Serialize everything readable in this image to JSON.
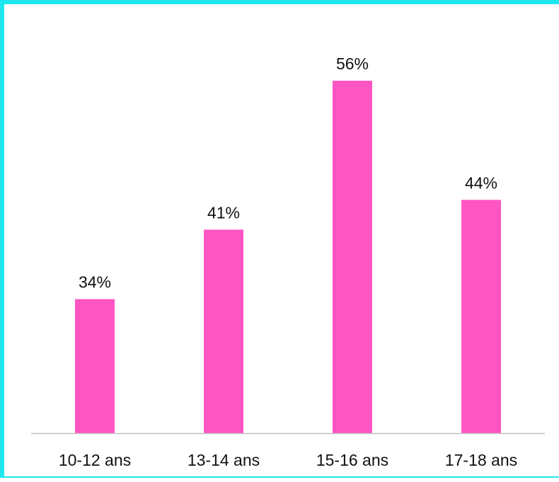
{
  "colors": {
    "bar": "#ff55c3",
    "frame": "#1ee7f0",
    "axis": "#bfbfbf",
    "text": "#111111"
  },
  "chart_data": {
    "type": "bar",
    "title": "",
    "xlabel": "",
    "ylabel": "",
    "categories": [
      "10-12 ans",
      "13-14 ans",
      "15-16 ans",
      "17-18 ans"
    ],
    "values": [
      34,
      41,
      56,
      44
    ],
    "value_labels": [
      "34%",
      "41%",
      "56%",
      "44%"
    ],
    "unit": "%",
    "ylim": [
      20.5,
      58
    ],
    "grid": false,
    "legend": "none"
  }
}
